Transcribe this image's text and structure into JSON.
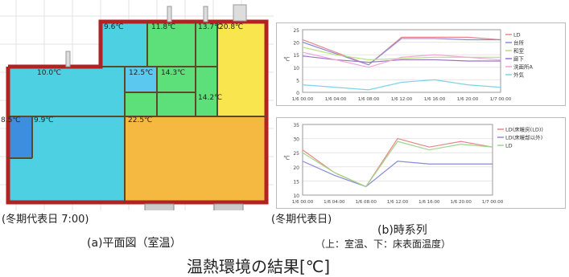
{
  "floorplan": {
    "caption_period": "(冬期代表日 7:00)",
    "caption_title": "(a)平面図（室温）",
    "colors": {
      "wall": "#b22222",
      "cyan": "#4dd0e1",
      "sky": "#5bc8f0",
      "green": "#5de07a",
      "yellow": "#f9e64f",
      "orange": "#f5b942",
      "blue": "#3e8ee0"
    },
    "rooms": [
      {
        "label": "9.6℃"
      },
      {
        "label": "11.8℃"
      },
      {
        "label": "13.7℃"
      },
      {
        "label": "20.8℃"
      },
      {
        "label": "10.0℃"
      },
      {
        "label": "12.5℃"
      },
      {
        "label": "14.3℃"
      },
      {
        "label": "14.2℃"
      },
      {
        "label": "8.5℃"
      },
      {
        "label": "9.9℃"
      },
      {
        "label": "22.5℃"
      }
    ]
  },
  "charts_caption": {
    "period": "(冬期代表日)",
    "title": "(b)時系列",
    "subtitle": "（上：室温、下：床表面温度）"
  },
  "main_title": "温熱環境の結果[℃]",
  "chart_data": [
    {
      "type": "line",
      "ylabel": "℃",
      "ylim": [
        0,
        25
      ],
      "yticks": [
        0,
        5,
        10,
        15,
        20,
        25
      ],
      "x": [
        "1/6 00:00",
        "1/6 04:00",
        "1/6 08:00",
        "1/6 12:00",
        "1/6 16:00",
        "1/6 20:00",
        "1/7 00:00"
      ],
      "x_tick_labels": [
        "1/6 00:00",
        "1/6 04:00",
        "1/6 08:00",
        "1/6 12:00",
        "1/6 16:00",
        "1/6 20:00",
        "1/7 00:00"
      ],
      "legend_position": "right",
      "series": [
        {
          "name": "LD",
          "color": "#e8868c",
          "values": [
            21,
            16,
            11,
            22,
            22,
            22,
            21
          ]
        },
        {
          "name": "台所",
          "color": "#8a8ad8",
          "values": [
            20,
            15.5,
            11,
            21.5,
            21.5,
            21,
            21
          ]
        },
        {
          "name": "和室",
          "color": "#b7de7a",
          "values": [
            18,
            15,
            13,
            13.5,
            14,
            14,
            14
          ]
        },
        {
          "name": "廊下",
          "color": "#9c6fc7",
          "values": [
            14.5,
            13,
            12,
            13,
            13,
            12.5,
            12.5
          ]
        },
        {
          "name": "洗面所A",
          "color": "#f0a6d9",
          "values": [
            16,
            13,
            10,
            14,
            15,
            14,
            13
          ]
        },
        {
          "name": "外気",
          "color": "#7fd3e6",
          "values": [
            3,
            2,
            1,
            4,
            5,
            3,
            2
          ]
        }
      ]
    },
    {
      "type": "line",
      "ylabel": "℃",
      "ylim": [
        10,
        35
      ],
      "yticks": [
        10,
        15,
        20,
        25,
        30,
        35
      ],
      "x": [
        "1/6 00:00",
        "1/6 04:00",
        "1/6 08:00",
        "1/6 12:00",
        "1/6 16:00",
        "1/6 20:00",
        "1/7 00:00"
      ],
      "x_tick_labels": [
        "1/6 00:00",
        "1/6 04:00",
        "1/6 08:00",
        "1/6 12:00",
        "1/6 16:00",
        "1/6 20:00",
        "1/7 00:00"
      ],
      "legend_position": "right",
      "series": [
        {
          "name": "LD(床暖房(LD))",
          "color": "#e8868c",
          "values": [
            26,
            18,
            13,
            30,
            27,
            29,
            27
          ]
        },
        {
          "name": "LD(床暖部以外)",
          "color": "#8a8ad8",
          "values": [
            22,
            17,
            13,
            22,
            21,
            21,
            21
          ]
        },
        {
          "name": "LD",
          "color": "#9bd88a",
          "values": [
            25,
            18,
            13,
            29,
            26,
            28,
            27
          ]
        }
      ]
    }
  ]
}
